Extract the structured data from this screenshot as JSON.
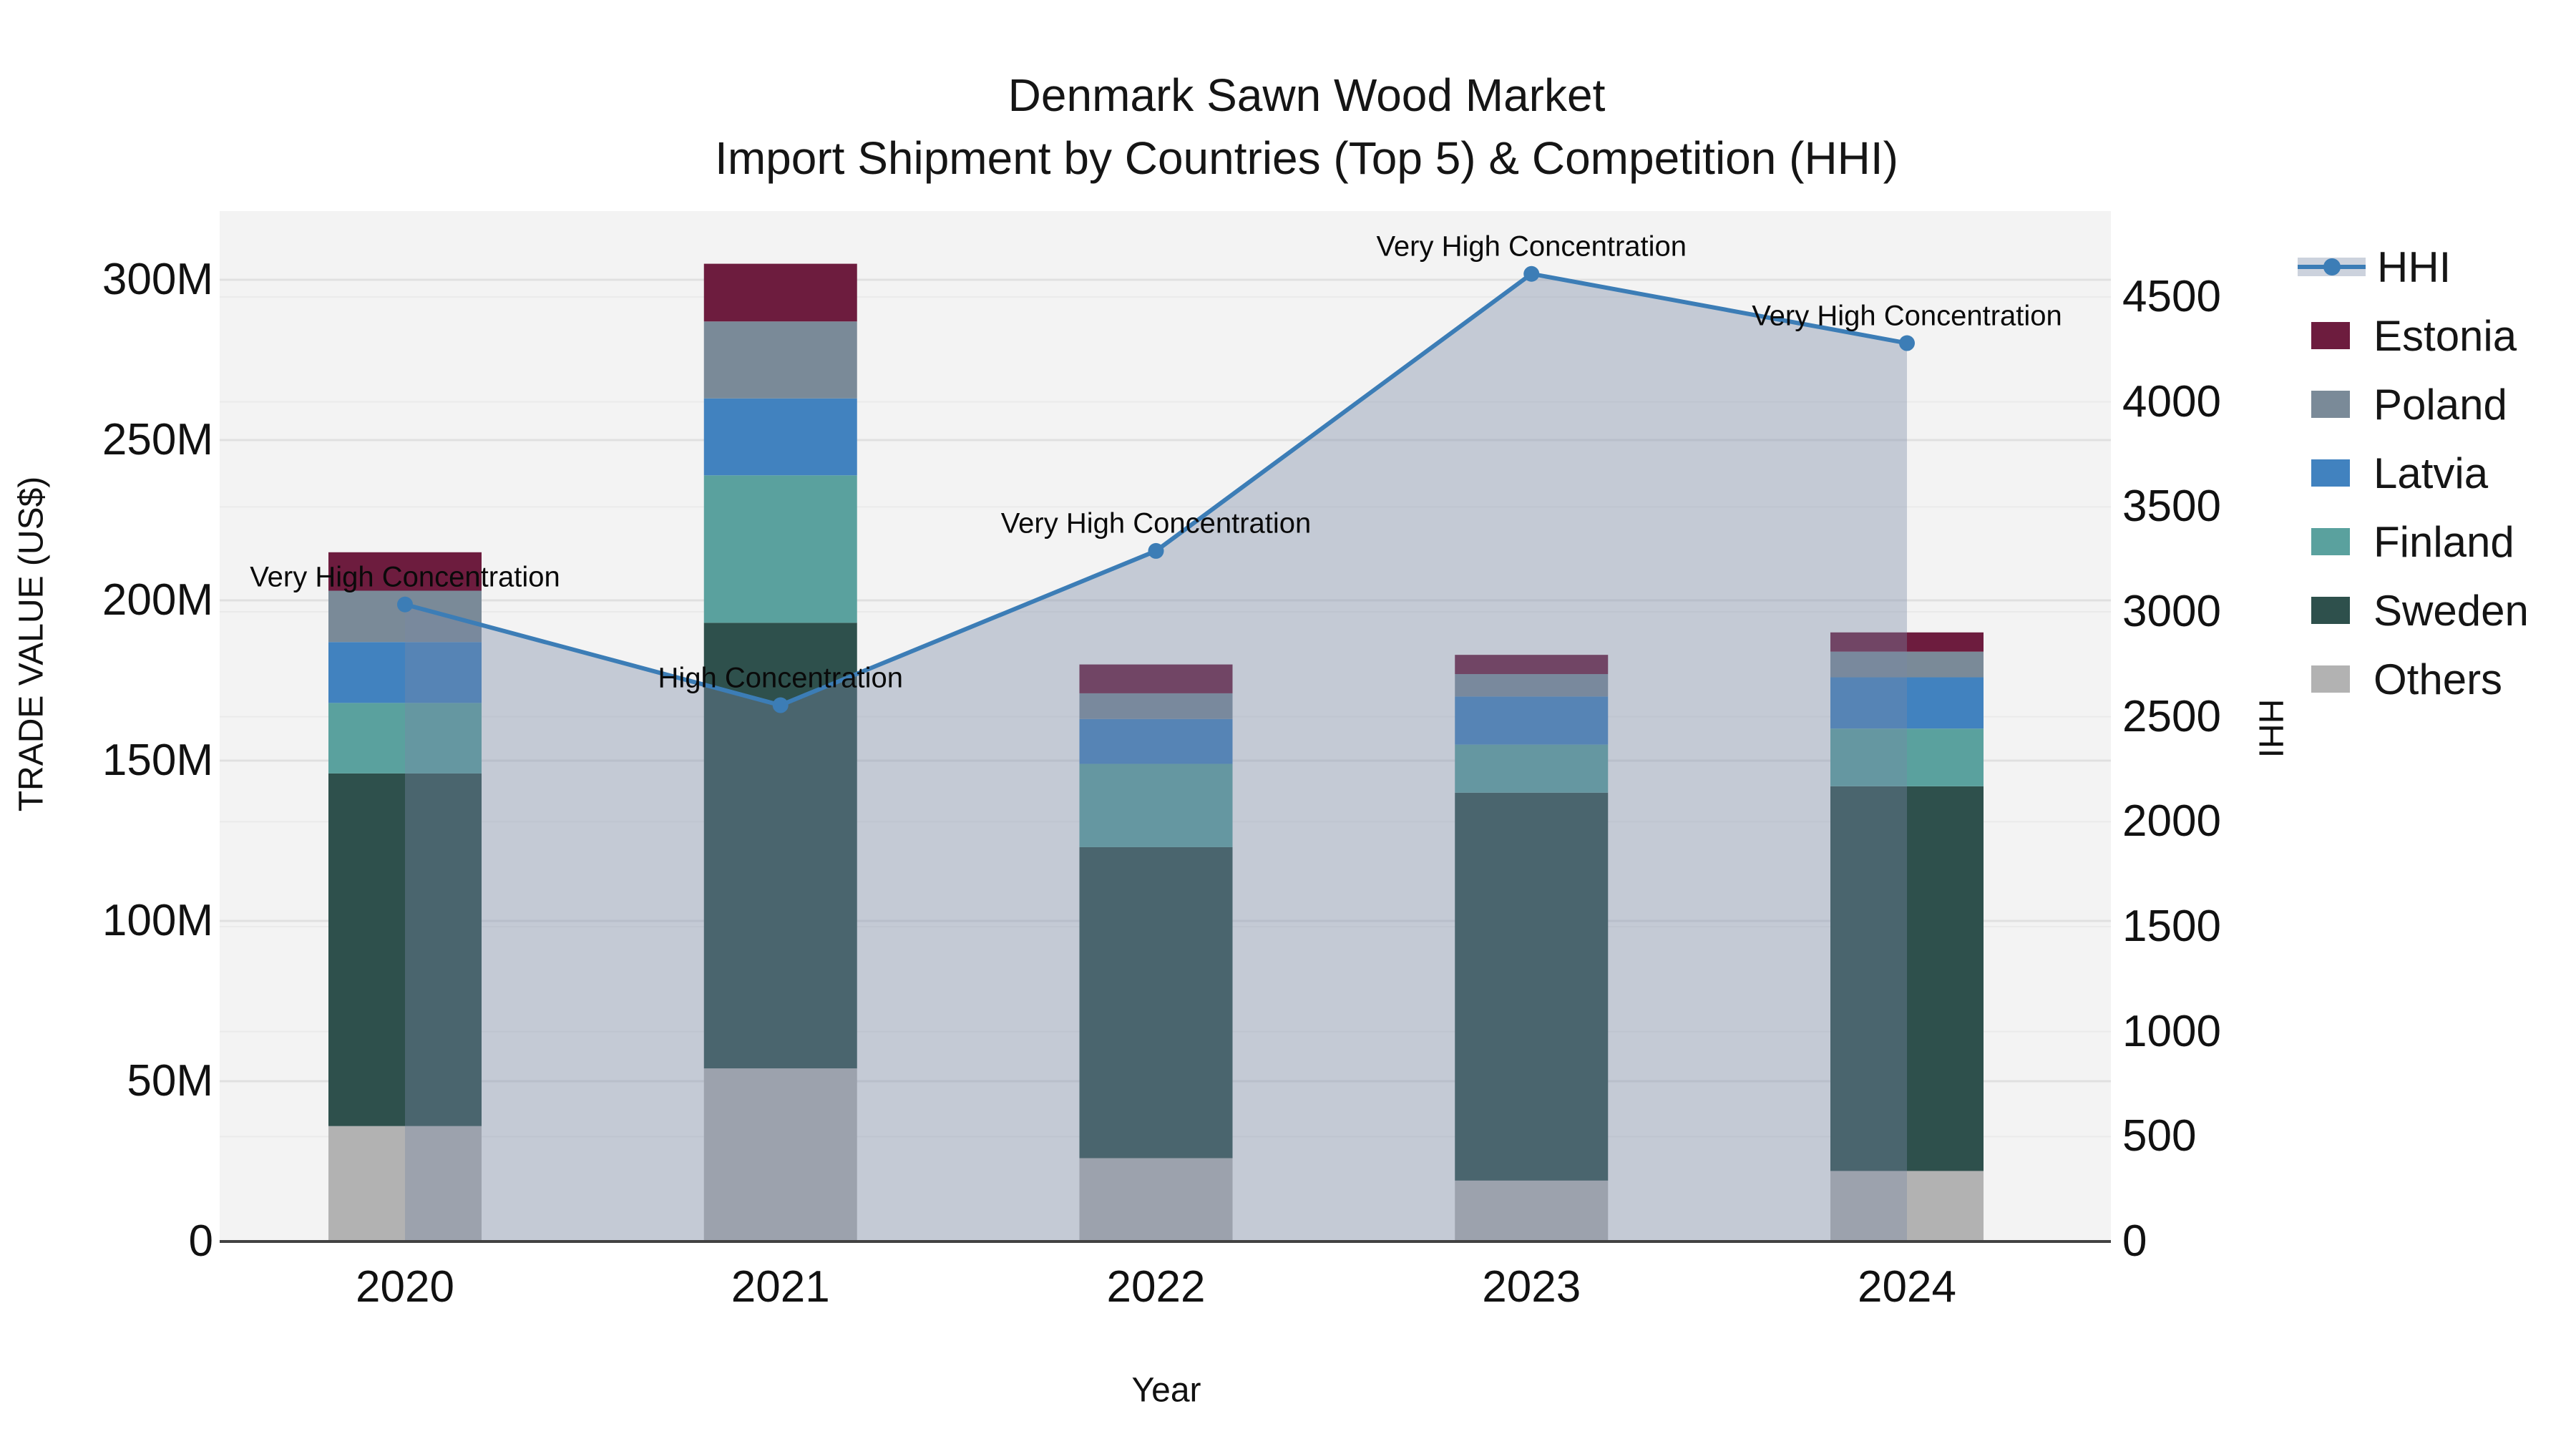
{
  "title": {
    "line1": "Denmark Sawn Wood Market",
    "line2": "Import Shipment by Countries (Top 5) & Competition (HHI)"
  },
  "axes": {
    "x_title": "Year",
    "left_title": "TRADE VALUE (US$)",
    "right_title": "HHI",
    "left_ticks": [
      "0",
      "50M",
      "100M",
      "150M",
      "200M",
      "250M",
      "300M"
    ],
    "right_ticks": [
      "0",
      "500",
      "1000",
      "1500",
      "2000",
      "2500",
      "3000",
      "3500",
      "4000",
      "4500"
    ]
  },
  "legend": {
    "items": [
      "HHI",
      "Estonia",
      "Poland",
      "Latvia",
      "Finland",
      "Sweden",
      "Others"
    ]
  },
  "colors": {
    "plot_bg": "#f3f3f3",
    "figure_bg": "#ffffff",
    "axis_line": "#424242",
    "grid_left": "#e0e0e0",
    "grid_right": "#eaeaea",
    "hhi_line": "#3c7db6",
    "hhi_area": "rgba(122,137,165,0.38)",
    "hhi_legend_band": "#ccd2dd"
  },
  "chart_data": {
    "type": "stacked-bar+line",
    "title": "Denmark Sawn Wood Market — Import Shipment by Countries (Top 5) & Competition (HHI)",
    "x": [
      "2020",
      "2021",
      "2022",
      "2023",
      "2024"
    ],
    "bar_unit": "M US$ (trade value, left axis)",
    "bar_series": [
      {
        "name": "Others",
        "color": "#b2b2b2",
        "values": [
          36,
          54,
          26,
          19,
          22
        ]
      },
      {
        "name": "Sweden",
        "color": "#2e504c",
        "values": [
          110,
          139,
          97,
          121,
          120
        ]
      },
      {
        "name": "Finland",
        "color": "#5aa19e",
        "values": [
          22,
          46,
          26,
          15,
          18
        ]
      },
      {
        "name": "Latvia",
        "color": "#4182bf",
        "values": [
          19,
          24,
          14,
          15,
          16
        ]
      },
      {
        "name": "Poland",
        "color": "#7a8a98",
        "values": [
          16,
          24,
          8,
          7,
          8
        ]
      },
      {
        "name": "Estonia",
        "color": "#6d1c3e",
        "values": [
          12,
          18,
          9,
          6,
          6
        ]
      }
    ],
    "bar_totals": [
      215,
      305,
      180,
      183,
      190
    ],
    "line_series": {
      "name": "HHI",
      "axis": "right",
      "color": "#3c7db6",
      "area_color": "rgba(122,137,165,0.38)",
      "values": [
        3035,
        2555,
        3290,
        4610,
        4280
      ]
    },
    "annotations": [
      "Very High Concentration",
      "High Concentration",
      "Very High Concentration",
      "Very High Concentration",
      "Very High Concentration"
    ],
    "left_axis": {
      "label": "TRADE VALUE (US$)",
      "range": [
        0,
        300
      ],
      "tick_step": 50,
      "unit": "M"
    },
    "right_axis": {
      "label": "HHI",
      "range": [
        0,
        4500
      ],
      "tick_step": 500
    },
    "legend_position": "right",
    "grid": true
  }
}
